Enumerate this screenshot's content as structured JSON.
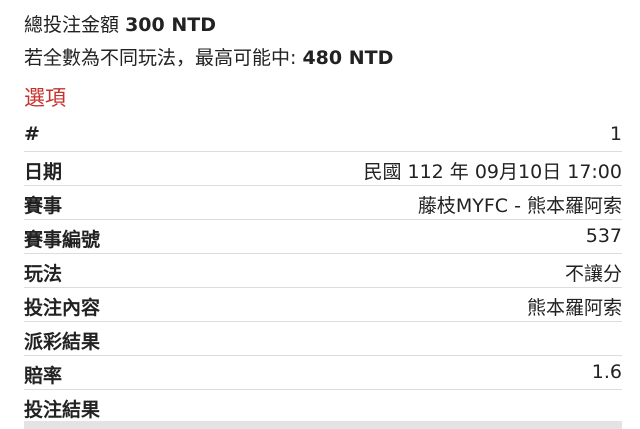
{
  "summary": {
    "total_label": "總投注金額",
    "total_value": "300 NTD",
    "max_label": "若全數為不同玩法，最高可能中:",
    "max_value": "480 NTD"
  },
  "section_title": "選項",
  "table": {
    "rows": [
      {
        "label": "#",
        "value": "1"
      },
      {
        "label": "日期",
        "value": "民國 112 年 09月10日 17:00"
      },
      {
        "label": "賽事",
        "value": "藤枝MYFC - 熊本羅阿索"
      },
      {
        "label": "賽事編號",
        "value": "537"
      },
      {
        "label": "玩法",
        "value": "不讓分"
      },
      {
        "label": "投注內容",
        "value": "熊本羅阿索"
      },
      {
        "label": "派彩結果"
      },
      {
        "label": "賠率",
        "value": "1.6"
      },
      {
        "label": "投注結果"
      }
    ]
  }
}
